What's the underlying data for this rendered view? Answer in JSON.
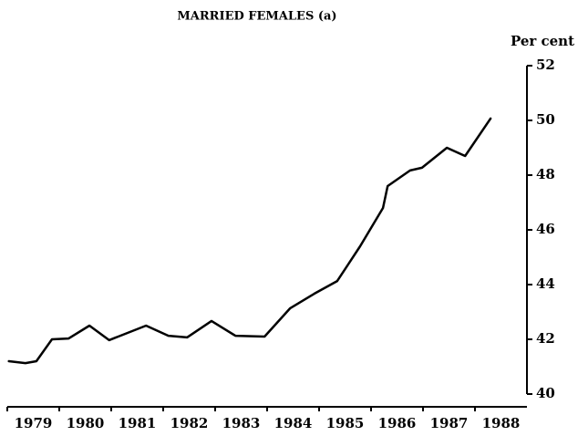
{
  "chart_data": {
    "type": "line",
    "title": "MARRIED FEMALES (a)",
    "y_axis_label": "Per cent",
    "series": [
      {
        "name": null,
        "color": "#000000",
        "x": [
          1978.53,
          1978.85,
          1979.06,
          1979.36,
          1979.68,
          1980.08,
          1980.46,
          1981.17,
          1981.6,
          1981.96,
          1982.43,
          1982.89,
          1983.45,
          1983.94,
          1984.41,
          1984.85,
          1985.29,
          1985.73,
          1985.82,
          1986.25,
          1986.48,
          1986.96,
          1987.31,
          1987.8
        ],
        "values": [
          41.2,
          41.13,
          41.2,
          42.0,
          42.03,
          42.5,
          41.97,
          42.5,
          42.13,
          42.07,
          42.67,
          42.13,
          42.1,
          43.13,
          43.67,
          44.13,
          45.4,
          46.8,
          47.6,
          48.17,
          48.27,
          49.0,
          48.7,
          50.07
        ]
      }
    ],
    "xlim": [
      1978.5,
      1988.5
    ],
    "xticks": [
      1979,
      1980,
      1981,
      1982,
      1983,
      1984,
      1985,
      1986,
      1987,
      1988
    ],
    "ylim": [
      40,
      52
    ],
    "yticks": [
      40,
      42,
      44,
      46,
      48,
      50,
      52
    ],
    "y_axis_side": "right",
    "grid": false
  }
}
